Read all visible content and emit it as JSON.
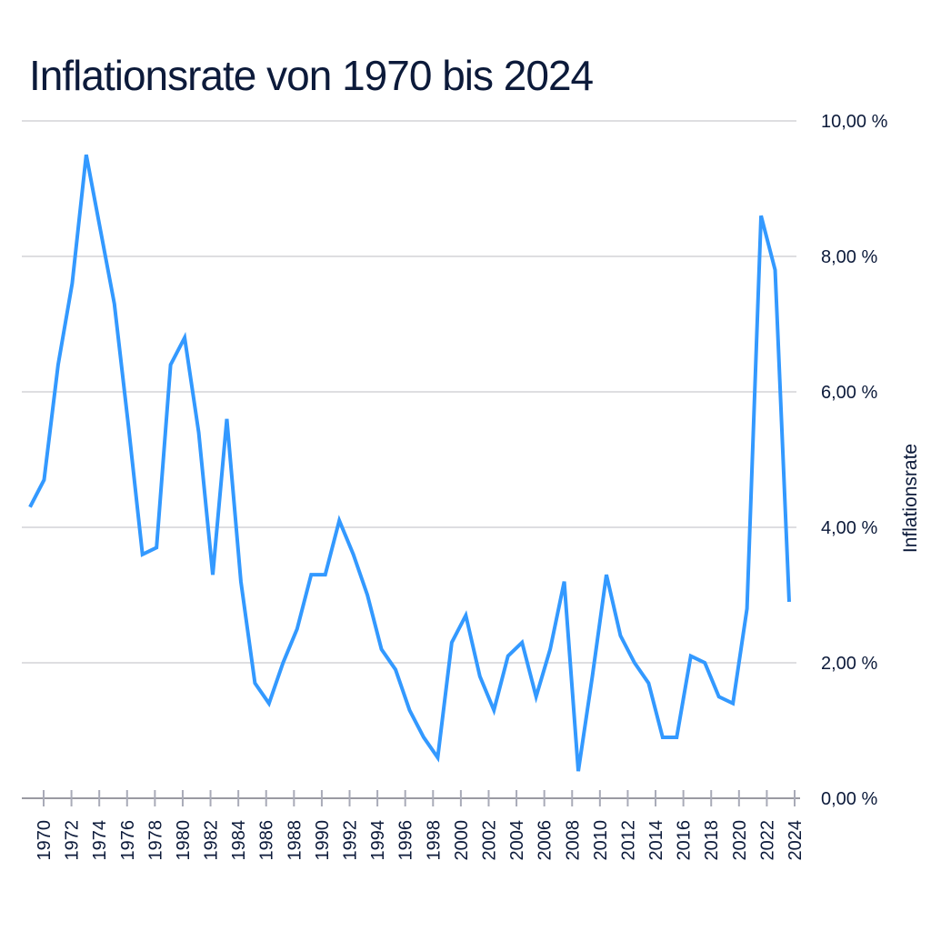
{
  "chart_data": {
    "type": "line",
    "title": "Inflationsrate von 1970 bis 2024",
    "xlabel": "",
    "ylabel": "Inflationsrate",
    "ylim": [
      0,
      10
    ],
    "yticks": [
      "0,00 %",
      "2,00 %",
      "4,00 %",
      "6,00 %",
      "8,00 %",
      "10,00 %"
    ],
    "ytick_values": [
      0,
      2,
      4,
      6,
      8,
      10
    ],
    "xtick_labels": [
      "1970",
      "1972",
      "1974",
      "1976",
      "1978",
      "1980",
      "1982",
      "1984",
      "1986",
      "1988",
      "1990",
      "1992",
      "1994",
      "1996",
      "1998",
      "2000",
      "2002",
      "2004",
      "2006",
      "2008",
      "2010",
      "2012",
      "2014",
      "2016",
      "2018",
      "2020",
      "2022",
      "2024"
    ],
    "grid": true,
    "line_color": "#3399ff",
    "x": [
      1970,
      1971,
      1972,
      1973,
      1974,
      1975,
      1976,
      1977,
      1978,
      1979,
      1980,
      1981,
      1982,
      1983,
      1984,
      1985,
      1986,
      1987,
      1988,
      1989,
      1990,
      1991,
      1992,
      1993,
      1994,
      1995,
      1996,
      1997,
      1998,
      1999,
      2000,
      2001,
      2002,
      2003,
      2004,
      2005,
      2006,
      2007,
      2008,
      2009,
      2010,
      2011,
      2012,
      2013,
      2014,
      2015,
      2016,
      2017,
      2018,
      2019,
      2020,
      2021,
      2022,
      2023,
      2024
    ],
    "values": [
      4.3,
      4.7,
      6.4,
      7.6,
      9.5,
      8.4,
      7.3,
      5.5,
      3.6,
      3.7,
      6.4,
      6.8,
      5.4,
      3.3,
      5.6,
      3.2,
      1.7,
      1.4,
      2.0,
      2.5,
      3.3,
      3.3,
      4.1,
      3.6,
      3.0,
      2.2,
      1.9,
      1.3,
      0.9,
      0.6,
      2.3,
      2.7,
      1.8,
      1.3,
      2.1,
      2.3,
      1.5,
      2.2,
      3.2,
      0.4,
      1.8,
      3.3,
      2.4,
      2.0,
      1.7,
      0.9,
      0.9,
      2.1,
      2.0,
      1.5,
      1.4,
      2.8,
      8.6,
      7.8,
      2.9
    ]
  }
}
